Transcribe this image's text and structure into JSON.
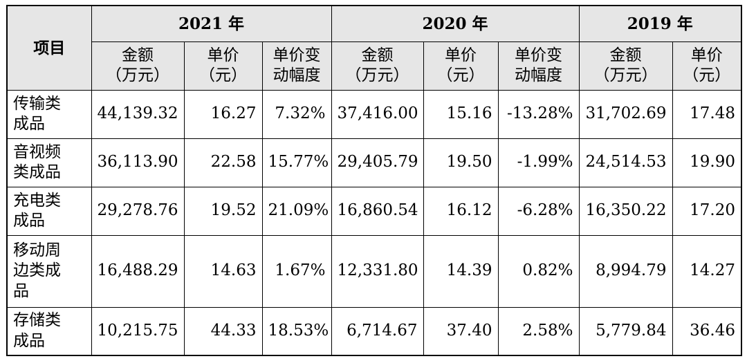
{
  "table": {
    "item_header": "项目",
    "years": [
      "2021 年",
      "2020 年",
      "2019 年"
    ],
    "subheaders": {
      "amount": [
        "金额",
        "（万元）"
      ],
      "unit_price": [
        "单价",
        "（元）"
      ],
      "price_change": [
        "单价变",
        "动幅度"
      ]
    },
    "rows": [
      {
        "label": [
          "传输类",
          "成品"
        ],
        "values": [
          "44,139.32",
          "16.27",
          "7.32%",
          "37,416.00",
          "15.16",
          "-13.28%",
          "31,702.69",
          "17.48"
        ]
      },
      {
        "label": [
          "音视频",
          "类成品"
        ],
        "values": [
          "36,113.90",
          "22.58",
          "15.77%",
          "29,405.79",
          "19.50",
          "-1.99%",
          "24,514.53",
          "19.90"
        ]
      },
      {
        "label": [
          "充电类",
          "成品"
        ],
        "values": [
          "29,278.76",
          "19.52",
          "21.09%",
          "16,860.54",
          "16.12",
          "-6.28%",
          "16,350.22",
          "17.20"
        ]
      },
      {
        "label": [
          "移动周",
          "边类成",
          "品"
        ],
        "values": [
          "16,488.29",
          "14.63",
          "1.67%",
          "12,331.80",
          "14.39",
          "0.82%",
          "8,994.79",
          "14.27"
        ]
      },
      {
        "label": [
          "存储类",
          "成品"
        ],
        "values": [
          "10,215.75",
          "44.33",
          "18.53%",
          "6,714.67",
          "37.40",
          "2.58%",
          "5,779.84",
          "36.46"
        ]
      }
    ]
  }
}
